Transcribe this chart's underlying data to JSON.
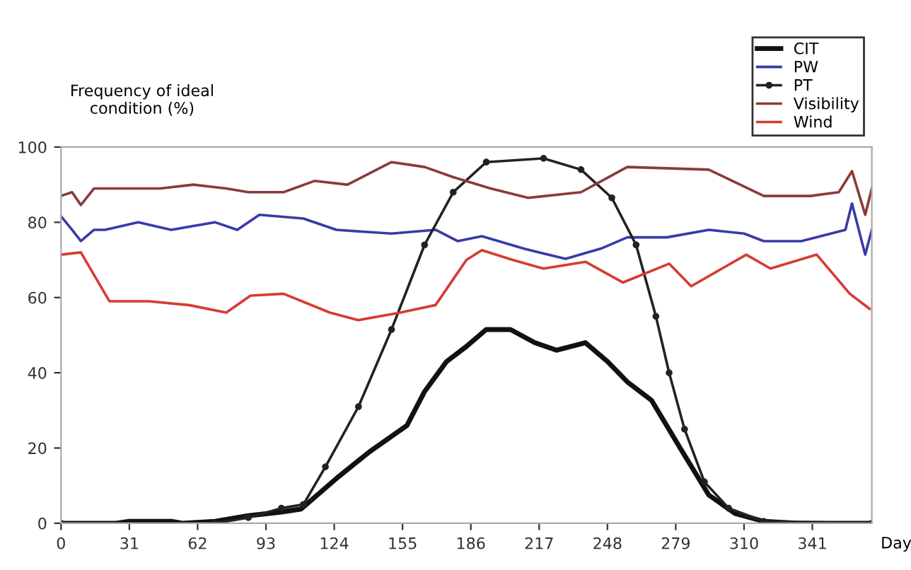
{
  "chart_data": {
    "type": "line",
    "ylabel": "Frequency of ideal\ncondition (%)",
    "xlabel": "Day",
    "xlim": [
      0,
      368
    ],
    "xticks": [
      0,
      31,
      62,
      93,
      124,
      155,
      186,
      217,
      248,
      279,
      310,
      341
    ],
    "ylim": [
      0,
      100
    ],
    "yticks": [
      0,
      20,
      40,
      60,
      80,
      100
    ],
    "grid": false,
    "legend": "top right",
    "series": [
      {
        "name": "CIT",
        "color": "#111111",
        "marker": "none",
        "x": [
          0,
          25,
          31,
          50,
          55,
          70,
          85,
          100,
          109,
          126,
          140,
          157,
          165,
          175,
          184,
          193,
          204,
          215,
          225,
          238,
          248,
          257,
          268,
          281,
          294,
          306,
          319,
          335,
          368
        ],
        "values": [
          0,
          0,
          0.5,
          0.5,
          0,
          0.5,
          2,
          3,
          3.8,
          12.4,
          19,
          26,
          35,
          43,
          47,
          51.5,
          51.5,
          48,
          46,
          48,
          43,
          37.6,
          32.7,
          20,
          7.5,
          2.6,
          0.5,
          0,
          0
        ]
      },
      {
        "name": "PW",
        "color": "#3a3aa8",
        "marker": "none",
        "x": [
          0,
          5,
          9,
          15,
          20,
          35,
          50,
          70,
          80,
          90,
          110,
          125,
          150,
          170,
          180,
          191,
          210,
          229,
          245,
          257,
          275,
          294,
          310,
          319,
          336,
          356,
          359,
          365,
          368
        ],
        "values": [
          81.6,
          78,
          75,
          78,
          78,
          80,
          78,
          80,
          78,
          82,
          81,
          78,
          77,
          78,
          75,
          76.3,
          73,
          70.3,
          73,
          76,
          76,
          78,
          77,
          75,
          75,
          78,
          85,
          71.4,
          78
        ]
      },
      {
        "name": "PT",
        "color": "#222222",
        "marker": "circle",
        "x": [
          0,
          70,
          85,
          100,
          110,
          120,
          135,
          150,
          165,
          178,
          193,
          219,
          236,
          250,
          261,
          270,
          276,
          283,
          292,
          303,
          319,
          368
        ],
        "values": [
          0,
          0,
          1.5,
          4,
          5,
          15,
          31,
          51.5,
          74,
          88,
          96,
          97,
          94,
          86.5,
          74,
          55,
          40,
          25,
          11,
          4,
          0.5,
          0
        ]
      },
      {
        "name": "Visibility",
        "color": "#8b3a3a",
        "marker": "none",
        "x": [
          0,
          5,
          9,
          15,
          30,
          45,
          60,
          75,
          85,
          101,
          115,
          130,
          150,
          165,
          178,
          195,
          212,
          236,
          257,
          294,
          319,
          340,
          353,
          359,
          365,
          368
        ],
        "values": [
          87,
          88,
          84.6,
          89,
          89,
          89,
          90,
          89,
          88,
          88,
          91,
          90,
          96,
          94.7,
          92,
          89,
          86.5,
          88,
          94.7,
          94,
          87,
          87,
          88,
          93.6,
          82,
          89
        ]
      },
      {
        "name": "Wind",
        "color": "#d63b32",
        "marker": "none",
        "x": [
          0,
          9,
          22,
          40,
          58,
          75,
          86,
          101,
          122,
          135,
          154,
          170,
          184,
          191,
          205,
          219,
          238,
          255,
          276,
          286,
          311,
          322,
          343,
          358,
          367
        ],
        "values": [
          71.4,
          72,
          59,
          59,
          58,
          56,
          60.5,
          61,
          56,
          54,
          56,
          58,
          70,
          72.6,
          70,
          67.7,
          69.5,
          64,
          69,
          63,
          71.4,
          67.7,
          71.4,
          61,
          57
        ]
      }
    ]
  }
}
